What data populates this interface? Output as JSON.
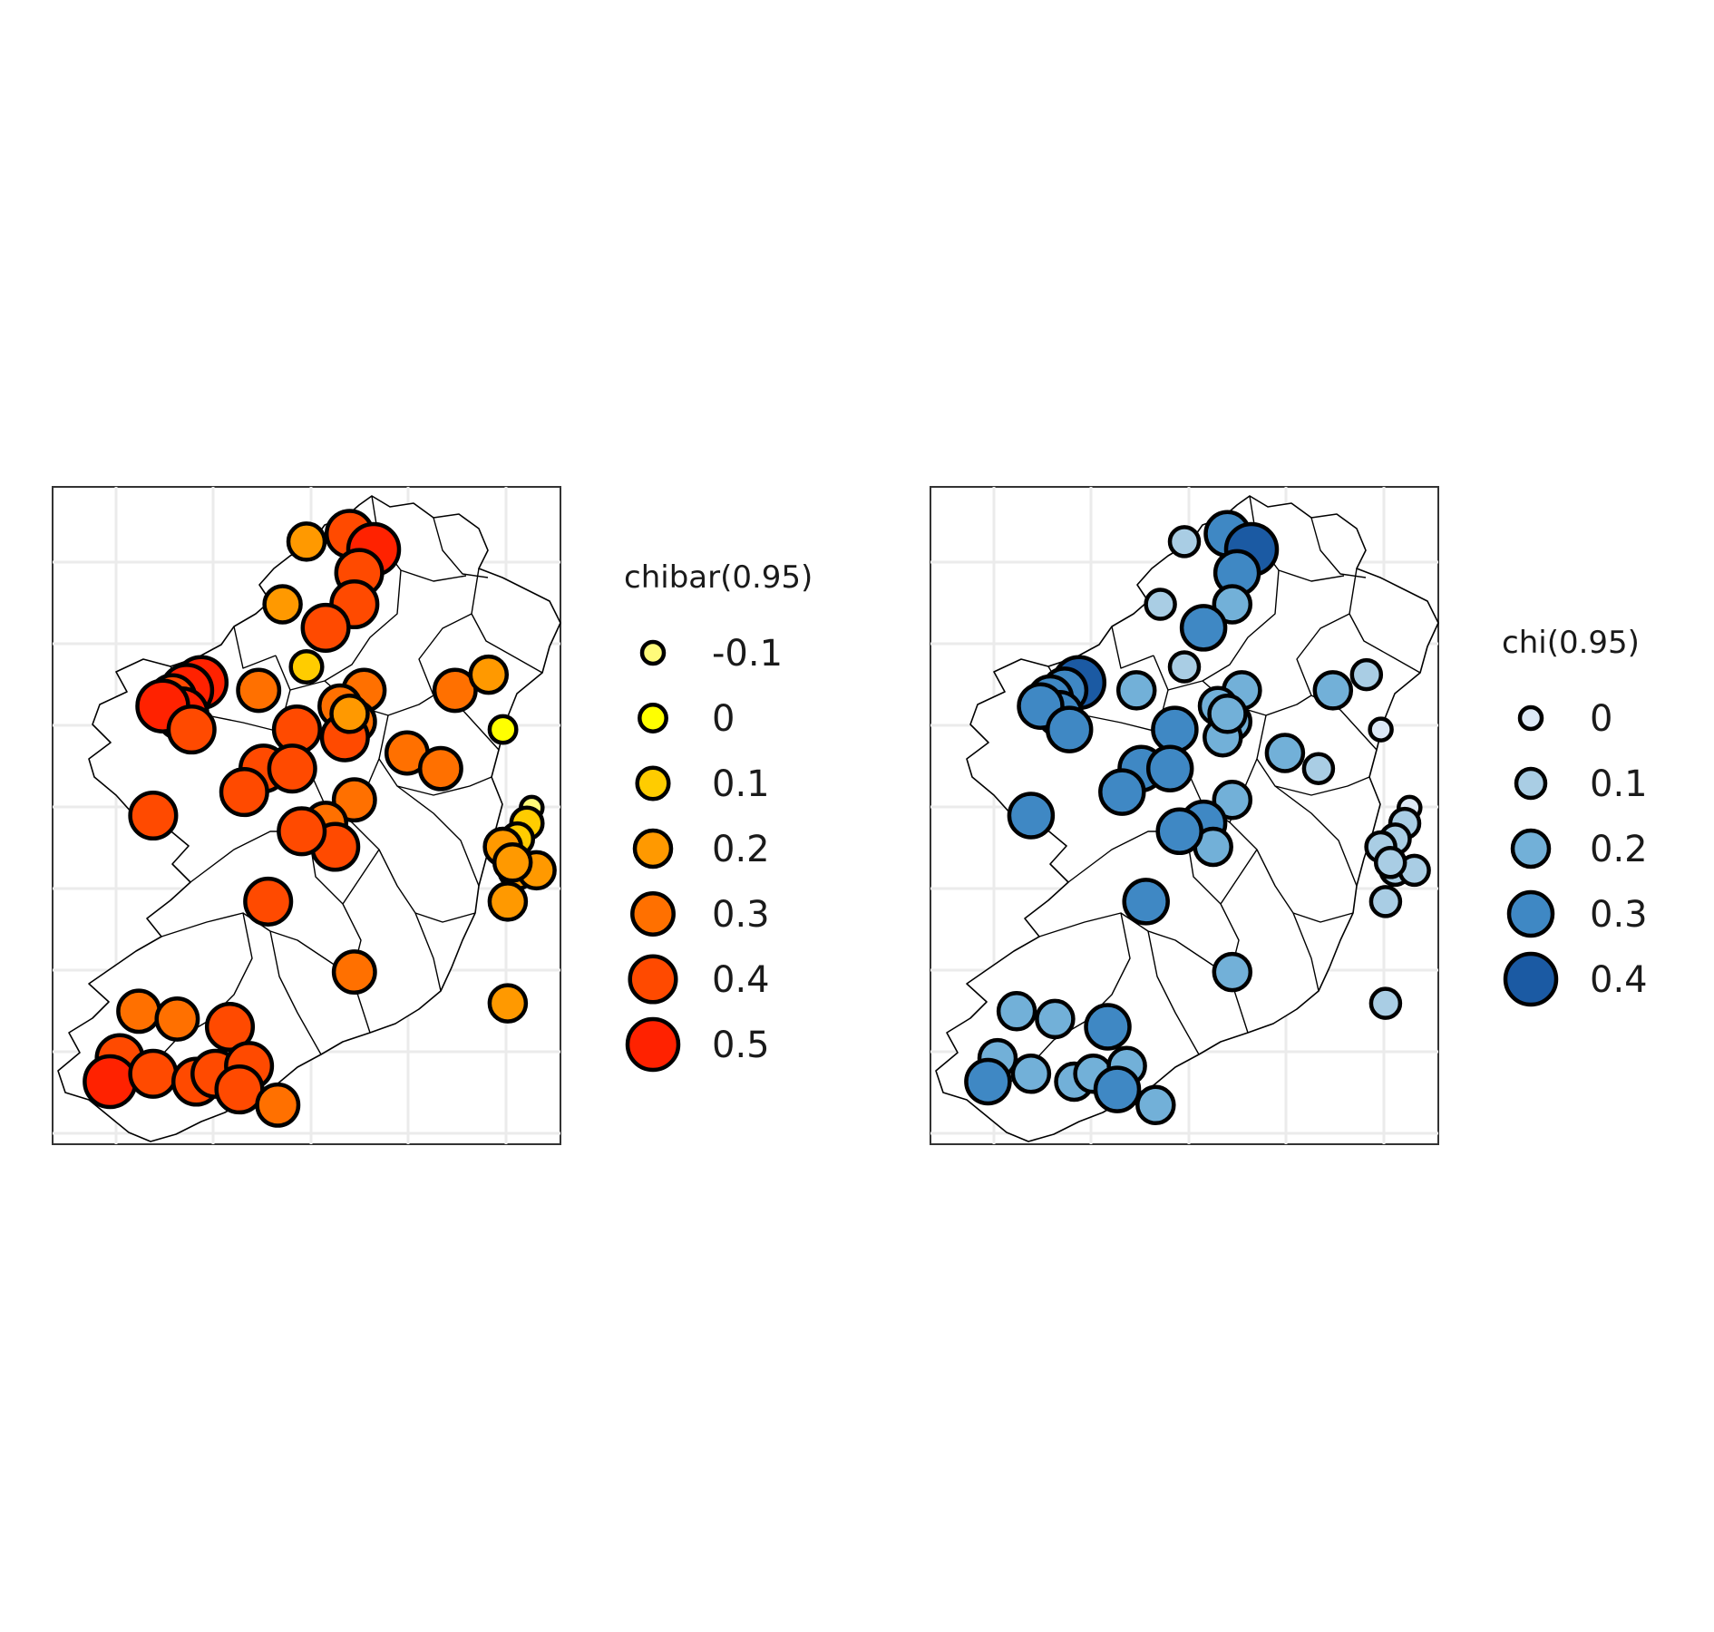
{
  "panels": [
    {
      "id": "chibar",
      "legend_title": "chibar(0.95)",
      "legend": [
        {
          "label": "-0.1",
          "value": -0.1,
          "color": "#fffb7a"
        },
        {
          "label": "0",
          "value": 0.0,
          "color": "#ffff00"
        },
        {
          "label": "0.1",
          "value": 0.1,
          "color": "#ffcc00"
        },
        {
          "label": "0.2",
          "value": 0.2,
          "color": "#ff9900"
        },
        {
          "label": "0.3",
          "value": 0.3,
          "color": "#ff7000"
        },
        {
          "label": "0.4",
          "value": 0.4,
          "color": "#ff4a00"
        },
        {
          "label": "0.5",
          "value": 0.5,
          "color": "#ff2200"
        }
      ]
    },
    {
      "id": "chi",
      "legend_title": "chi(0.95)",
      "legend": [
        {
          "label": "0",
          "value": 0.0,
          "color": "#dce8f6"
        },
        {
          "label": "0.1",
          "value": 0.1,
          "color": "#a9cde4"
        },
        {
          "label": "0.2",
          "value": 0.2,
          "color": "#72b0d8"
        },
        {
          "label": "0.3",
          "value": 0.3,
          "color": "#3f88c4"
        },
        {
          "label": "0.4",
          "value": 0.4,
          "color": "#1b5aa3"
        }
      ]
    }
  ],
  "chart_data": {
    "type": "scatter",
    "map_region": "Ireland",
    "x_range_lon": [
      -10.9,
      -5.6
    ],
    "y_range_lat": [
      51.3,
      55.5
    ],
    "grid": true,
    "stations": [
      {
        "lon": -8.25,
        "lat": 55.15,
        "chibar": 0.2,
        "chi": 0.1
      },
      {
        "lon": -7.8,
        "lat": 55.2,
        "chibar": 0.4,
        "chi": 0.3
      },
      {
        "lon": -7.55,
        "lat": 55.1,
        "chibar": 0.5,
        "chi": 0.4
      },
      {
        "lon": -7.7,
        "lat": 54.95,
        "chibar": 0.4,
        "chi": 0.3
      },
      {
        "lon": -8.5,
        "lat": 54.75,
        "chibar": 0.2,
        "chi": 0.1
      },
      {
        "lon": -7.75,
        "lat": 54.75,
        "chibar": 0.4,
        "chi": 0.2
      },
      {
        "lon": -8.05,
        "lat": 54.6,
        "chibar": 0.4,
        "chi": 0.3
      },
      {
        "lon": -8.25,
        "lat": 54.35,
        "chibar": 0.1,
        "chi": 0.1
      },
      {
        "lon": -9.35,
        "lat": 54.25,
        "chibar": 0.5,
        "chi": 0.4
      },
      {
        "lon": -9.5,
        "lat": 54.2,
        "chibar": 0.5,
        "chi": 0.3
      },
      {
        "lon": -9.65,
        "lat": 54.15,
        "chibar": 0.4,
        "chi": 0.3
      },
      {
        "lon": -9.55,
        "lat": 54.05,
        "chibar": 0.5,
        "chi": 0.3
      },
      {
        "lon": -9.75,
        "lat": 54.1,
        "chibar": 0.5,
        "chi": 0.3
      },
      {
        "lon": -9.45,
        "lat": 53.95,
        "chibar": 0.4,
        "chi": 0.3
      },
      {
        "lon": -8.75,
        "lat": 54.2,
        "chibar": 0.3,
        "chi": 0.2
      },
      {
        "lon": -7.65,
        "lat": 54.2,
        "chibar": 0.3,
        "chi": 0.2
      },
      {
        "lon": -7.9,
        "lat": 54.1,
        "chibar": 0.3,
        "chi": 0.2
      },
      {
        "lon": -7.75,
        "lat": 54.0,
        "chibar": 0.3,
        "chi": 0.2
      },
      {
        "lon": -7.85,
        "lat": 53.9,
        "chibar": 0.4,
        "chi": 0.2
      },
      {
        "lon": -7.8,
        "lat": 54.05,
        "chibar": 0.2,
        "chi": 0.2
      },
      {
        "lon": -6.7,
        "lat": 54.2,
        "chibar": 0.3,
        "chi": 0.2
      },
      {
        "lon": -6.35,
        "lat": 54.3,
        "chibar": 0.2,
        "chi": 0.1
      },
      {
        "lon": -6.2,
        "lat": 53.95,
        "chibar": 0.0,
        "chi": 0.0
      },
      {
        "lon": -8.35,
        "lat": 53.95,
        "chibar": 0.4,
        "chi": 0.3
      },
      {
        "lon": -8.7,
        "lat": 53.7,
        "chibar": 0.4,
        "chi": 0.3
      },
      {
        "lon": -8.4,
        "lat": 53.7,
        "chibar": 0.4,
        "chi": 0.3
      },
      {
        "lon": -8.9,
        "lat": 53.55,
        "chibar": 0.4,
        "chi": 0.3
      },
      {
        "lon": -7.2,
        "lat": 53.8,
        "chibar": 0.3,
        "chi": 0.2
      },
      {
        "lon": -6.85,
        "lat": 53.7,
        "chibar": 0.3,
        "chi": 0.1
      },
      {
        "lon": -7.75,
        "lat": 53.5,
        "chibar": 0.3,
        "chi": 0.2
      },
      {
        "lon": -9.85,
        "lat": 53.4,
        "chibar": 0.4,
        "chi": 0.3
      },
      {
        "lon": -8.05,
        "lat": 53.35,
        "chibar": 0.3,
        "chi": 0.3
      },
      {
        "lon": -7.95,
        "lat": 53.2,
        "chibar": 0.4,
        "chi": 0.2
      },
      {
        "lon": -8.3,
        "lat": 53.3,
        "chibar": 0.4,
        "chi": 0.3
      },
      {
        "lon": -5.9,
        "lat": 53.45,
        "chibar": -0.1,
        "chi": 0.0
      },
      {
        "lon": -5.95,
        "lat": 53.35,
        "chibar": 0.1,
        "chi": 0.1
      },
      {
        "lon": -6.05,
        "lat": 53.25,
        "chibar": 0.1,
        "chi": 0.1
      },
      {
        "lon": -6.2,
        "lat": 53.2,
        "chibar": 0.2,
        "chi": 0.1
      },
      {
        "lon": -6.05,
        "lat": 53.05,
        "chibar": 0.2,
        "chi": 0.1
      },
      {
        "lon": -5.85,
        "lat": 53.05,
        "chibar": 0.2,
        "chi": 0.1
      },
      {
        "lon": -6.1,
        "lat": 53.1,
        "chibar": 0.2,
        "chi": 0.1
      },
      {
        "lon": -6.15,
        "lat": 52.85,
        "chibar": 0.2,
        "chi": 0.1
      },
      {
        "lon": -8.65,
        "lat": 52.85,
        "chibar": 0.4,
        "chi": 0.3
      },
      {
        "lon": -7.75,
        "lat": 52.4,
        "chibar": 0.3,
        "chi": 0.2
      },
      {
        "lon": -6.15,
        "lat": 52.2,
        "chibar": 0.2,
        "chi": 0.1
      },
      {
        "lon": -10.0,
        "lat": 52.15,
        "chibar": 0.3,
        "chi": 0.2
      },
      {
        "lon": -9.6,
        "lat": 52.1,
        "chibar": 0.3,
        "chi": 0.2
      },
      {
        "lon": -9.05,
        "lat": 52.05,
        "chibar": 0.4,
        "chi": 0.3
      },
      {
        "lon": -10.2,
        "lat": 51.85,
        "chibar": 0.4,
        "chi": 0.2
      },
      {
        "lon": -10.3,
        "lat": 51.7,
        "chibar": 0.5,
        "chi": 0.3
      },
      {
        "lon": -9.85,
        "lat": 51.75,
        "chibar": 0.4,
        "chi": 0.2
      },
      {
        "lon": -9.4,
        "lat": 51.7,
        "chibar": 0.4,
        "chi": 0.2
      },
      {
        "lon": -9.2,
        "lat": 51.75,
        "chibar": 0.4,
        "chi": 0.2
      },
      {
        "lon": -8.85,
        "lat": 51.8,
        "chibar": 0.4,
        "chi": 0.2
      },
      {
        "lon": -8.95,
        "lat": 51.65,
        "chibar": 0.4,
        "chi": 0.3
      },
      {
        "lon": -8.55,
        "lat": 51.55,
        "chibar": 0.3,
        "chi": 0.2
      }
    ]
  }
}
